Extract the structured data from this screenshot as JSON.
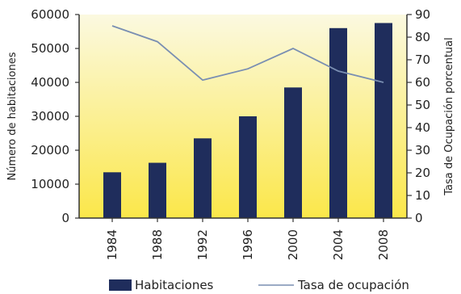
{
  "chart_data": {
    "type": "bar+line",
    "categories": [
      "1984",
      "1988",
      "1992",
      "1996",
      "2000",
      "2004",
      "2008"
    ],
    "series": [
      {
        "name": "Habitaciones",
        "type": "bar",
        "axis": "left",
        "values": [
          13500,
          16300,
          23500,
          30000,
          38500,
          56000,
          57500
        ],
        "color": "#1f2d5c"
      },
      {
        "name": "Tasa de ocupación",
        "type": "line",
        "axis": "right",
        "values": [
          85,
          78,
          61,
          66,
          75,
          65,
          60
        ],
        "color": "#7a8fb2"
      }
    ],
    "ylabel_left": "Número de habitaciones",
    "ylabel_right": "Tasa de Ocupación porcentual",
    "yticks_left": [
      "0",
      "10000",
      "20000",
      "30000",
      "40000",
      "50000",
      "60000"
    ],
    "yticks_right": [
      "0",
      "10",
      "20",
      "30",
      "40",
      "50",
      "60",
      "70",
      "80",
      "90"
    ],
    "ylim_left": [
      0,
      60000
    ],
    "ylim_right": [
      0,
      90
    ],
    "legend_position": "bottom",
    "background_gradient": [
      "#fbf9e0",
      "#fbe74a"
    ]
  }
}
